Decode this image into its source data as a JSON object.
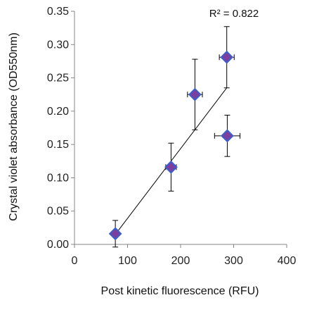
{
  "chart_data": {
    "type": "scatter",
    "title": "",
    "xlabel": "Post kinetic fluorescence (RFU)",
    "ylabel": "Crystal violet absorbance (OD550nm)",
    "xlim": [
      0,
      400
    ],
    "ylim": [
      0,
      0.35
    ],
    "x_ticks": [
      0,
      100,
      200,
      300,
      400
    ],
    "x_tick_labels": [
      "0",
      "100",
      "200",
      "300",
      "400"
    ],
    "y_ticks": [
      0,
      0.05,
      0.1,
      0.15,
      0.2,
      0.25,
      0.3,
      0.35
    ],
    "y_tick_labels": [
      "0.00",
      "0.05",
      "0.10",
      "0.15",
      "0.20",
      "0.25",
      "0.30",
      "0.35"
    ],
    "grid": false,
    "points": [
      {
        "x": 77,
        "y": 0.016,
        "x_err": 6,
        "y_err": 0.02
      },
      {
        "x": 182,
        "y": 0.116,
        "x_err": 10,
        "y_err": 0.036
      },
      {
        "x": 227,
        "y": 0.225,
        "x_err": 14,
        "y_err": 0.053
      },
      {
        "x": 287,
        "y": 0.281,
        "x_err": 14,
        "y_err": 0.046
      },
      {
        "x": 288,
        "y": 0.163,
        "x_err": 24,
        "y_err": 0.031
      }
    ],
    "trendline": {
      "x1": 77,
      "y1": 0.015,
      "x2": 287,
      "y2": 0.235
    },
    "annotation": "R² = 0.822",
    "marker_color": "#7b3fa0",
    "marker_edge_color": "#3a5fcd"
  }
}
